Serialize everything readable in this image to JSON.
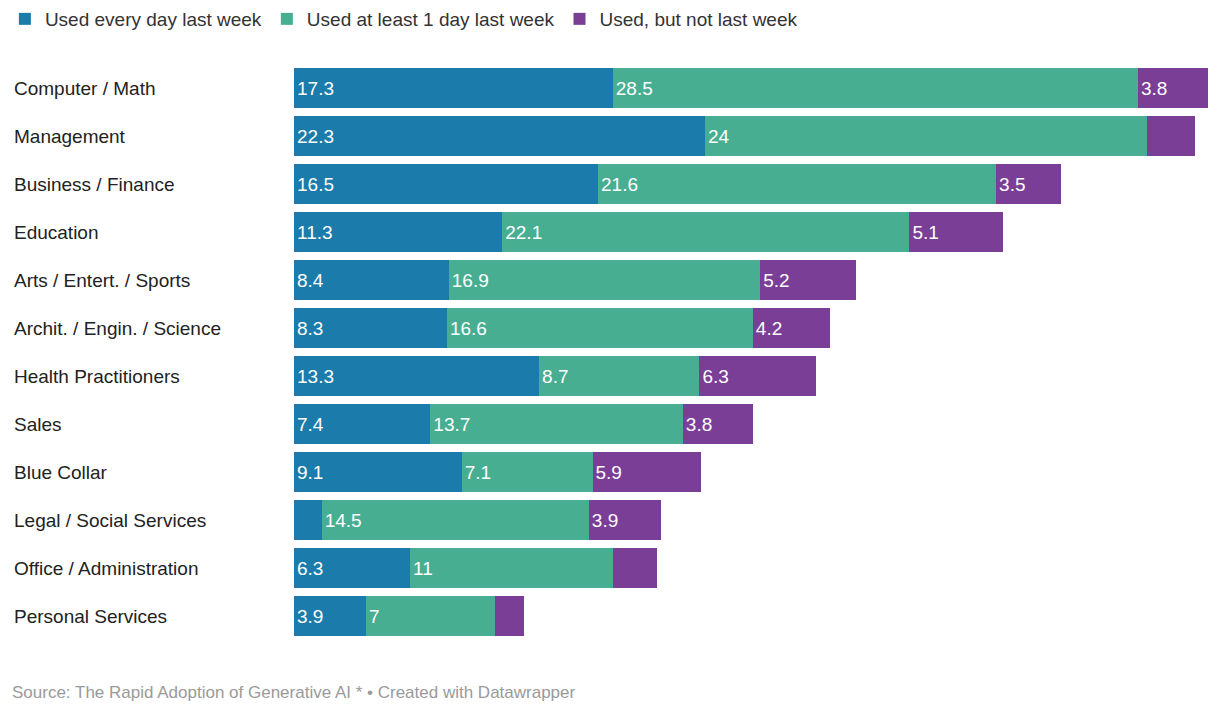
{
  "chart_data": {
    "type": "bar",
    "orientation": "horizontal",
    "stacked": true,
    "data_labels": true,
    "tick_labels": false,
    "grid": false,
    "legend": "top-left",
    "source": "Source: The Rapid Adoption of Generative AI * • Created with Datawrapper",
    "categories": [
      "Computer / Math",
      "Management",
      "Business / Finance",
      "Education",
      "Arts / Entert. / Sports",
      "Archit. / Engin. / Science",
      "Health Practitioners",
      "Sales",
      "Blue Collar",
      "Legal / Social Services",
      "Office / Administration",
      "Personal Services"
    ],
    "series": [
      {
        "name": "Used every day last week",
        "color": "#1b7bab",
        "values": [
          17.3,
          22.3,
          16.5,
          11.3,
          8.4,
          8.3,
          13.3,
          7.4,
          9.1,
          1.5,
          6.3,
          3.9
        ],
        "value_labels": [
          "17.3",
          "22.3",
          "16.5",
          "11.3",
          "8.4",
          "8.3",
          "13.3",
          "7.4",
          "9.1",
          null,
          "6.3",
          "3.9"
        ]
      },
      {
        "name": "Used at least 1 day last week",
        "color": "#48ae91",
        "values": [
          28.5,
          24,
          21.6,
          22.1,
          16.9,
          16.6,
          8.7,
          13.7,
          7.1,
          14.5,
          11,
          7
        ],
        "value_labels": [
          "28.5",
          "24",
          "21.6",
          "22.1",
          "16.9",
          "16.6",
          "8.7",
          "13.7",
          "7.1",
          "14.5",
          "11",
          "7"
        ]
      },
      {
        "name": "Used, but not last week",
        "color": "#7a3e97",
        "values": [
          3.8,
          2.6,
          3.5,
          5.1,
          5.2,
          4.2,
          6.3,
          3.8,
          5.9,
          3.9,
          2.4,
          1.6
        ],
        "value_labels": [
          "3.8",
          null,
          "3.5",
          "5.1",
          "5.2",
          "4.2",
          "6.3",
          "3.8",
          "5.9",
          "3.9",
          null,
          null
        ]
      }
    ]
  }
}
